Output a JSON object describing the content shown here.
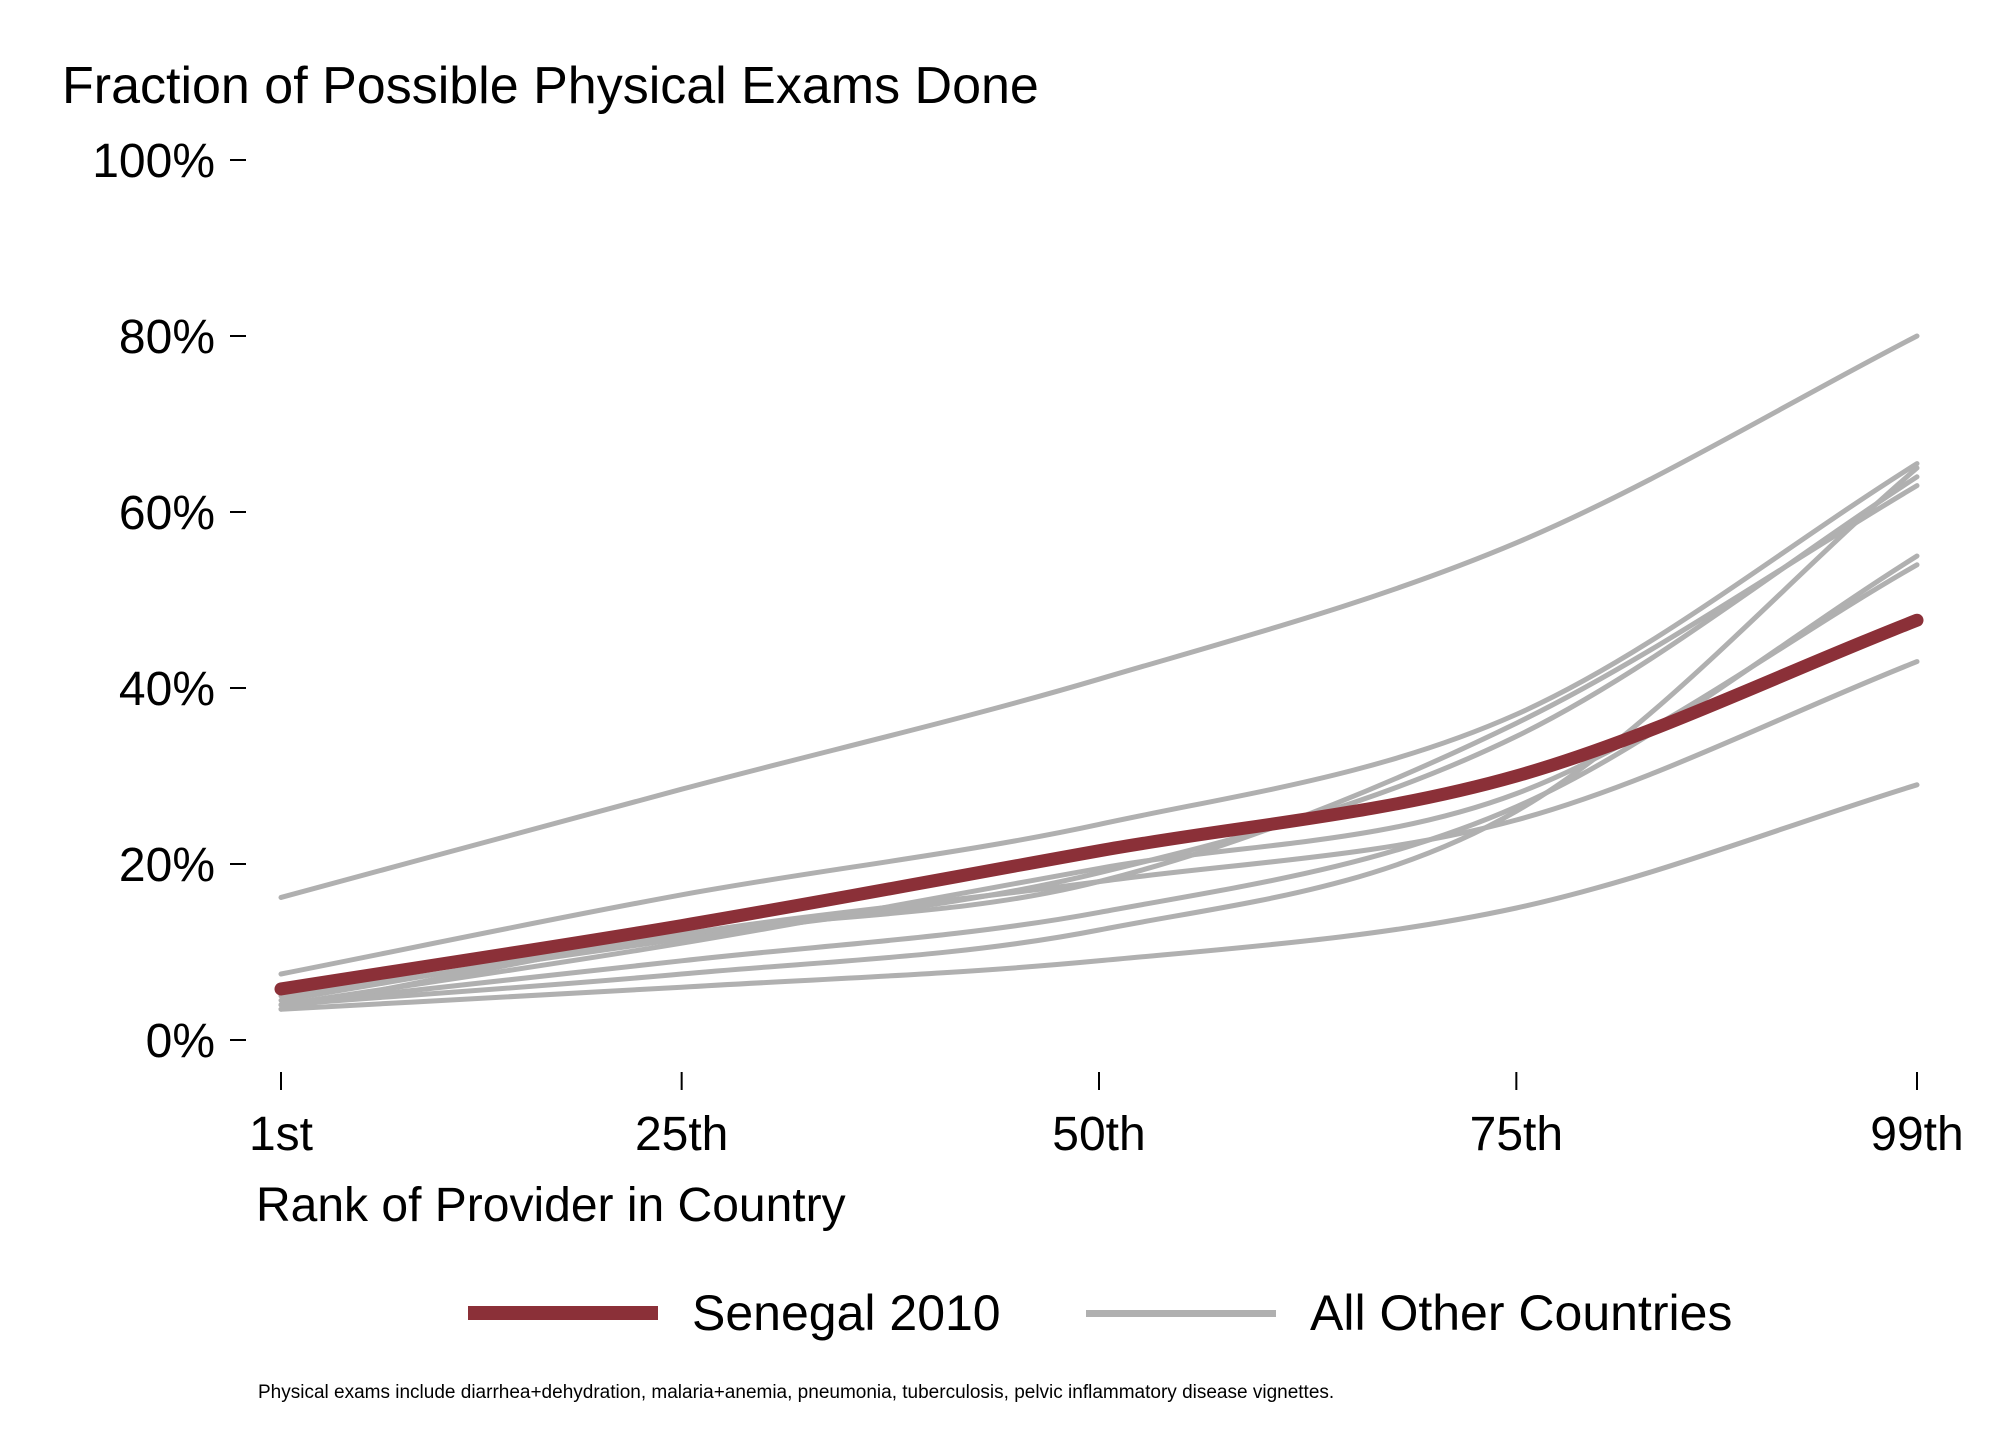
{
  "chart_data": {
    "type": "line",
    "title": "Fraction of Possible Physical Exams Done",
    "xlabel": "Rank of Provider in Country",
    "ylabel": "",
    "x_ticks": [
      {
        "value": 1,
        "label": "1st"
      },
      {
        "value": 25,
        "label": "25th"
      },
      {
        "value": 50,
        "label": "50th"
      },
      {
        "value": 75,
        "label": "75th"
      },
      {
        "value": 99,
        "label": "99th"
      }
    ],
    "y_ticks": [
      {
        "value": 0,
        "label": "0%"
      },
      {
        "value": 0.2,
        "label": "20%"
      },
      {
        "value": 0.4,
        "label": "40%"
      },
      {
        "value": 0.6,
        "label": "60%"
      },
      {
        "value": 0.8,
        "label": "80%"
      },
      {
        "value": 1.0,
        "label": "100%"
      }
    ],
    "xlim": [
      1,
      99
    ],
    "ylim": [
      0,
      1
    ],
    "grid": false,
    "legend_position": "bottom",
    "x": [
      1,
      25,
      50,
      75,
      99
    ],
    "series": [
      {
        "name": "Senegal 2010",
        "color": "#8b3038",
        "highlight": true,
        "values": [
          0.058,
          0.13,
          0.215,
          0.3,
          0.477
        ]
      },
      {
        "name": "All Other Countries",
        "color": "#b0b0b0",
        "highlight": false,
        "values": [
          0.162,
          0.285,
          0.41,
          0.565,
          0.8
        ]
      },
      {
        "color": "#b0b0b0",
        "highlight": false,
        "values": [
          0.075,
          0.165,
          0.245,
          0.37,
          0.655
        ]
      },
      {
        "color": "#b0b0b0",
        "highlight": false,
        "values": [
          0.05,
          0.115,
          0.19,
          0.345,
          0.64
        ]
      },
      {
        "color": "#b0b0b0",
        "highlight": false,
        "values": [
          0.045,
          0.12,
          0.18,
          0.36,
          0.63
        ]
      },
      {
        "color": "#b0b0b0",
        "highlight": false,
        "values": [
          0.04,
          0.075,
          0.125,
          0.26,
          0.65
        ]
      },
      {
        "color": "#b0b0b0",
        "highlight": false,
        "values": [
          0.04,
          0.09,
          0.145,
          0.265,
          0.55
        ]
      },
      {
        "color": "#b0b0b0",
        "highlight": false,
        "values": [
          0.035,
          0.12,
          0.18,
          0.25,
          0.43
        ]
      },
      {
        "color": "#b0b0b0",
        "highlight": false,
        "values": [
          0.04,
          0.11,
          0.195,
          0.28,
          0.54
        ]
      },
      {
        "color": "#b0b0b0",
        "highlight": false,
        "values": [
          0.035,
          0.06,
          0.09,
          0.15,
          0.29
        ]
      }
    ],
    "note": "Physical exams include diarrhea+dehydration, malaria+anemia, pneumonia, tuberculosis, pelvic inflammatory disease vignettes."
  },
  "legend": {
    "highlight_label": "Senegal 2010",
    "highlight_color": "#8b3038",
    "others_label": "All Other Countries",
    "others_color": "#b0b0b0"
  }
}
